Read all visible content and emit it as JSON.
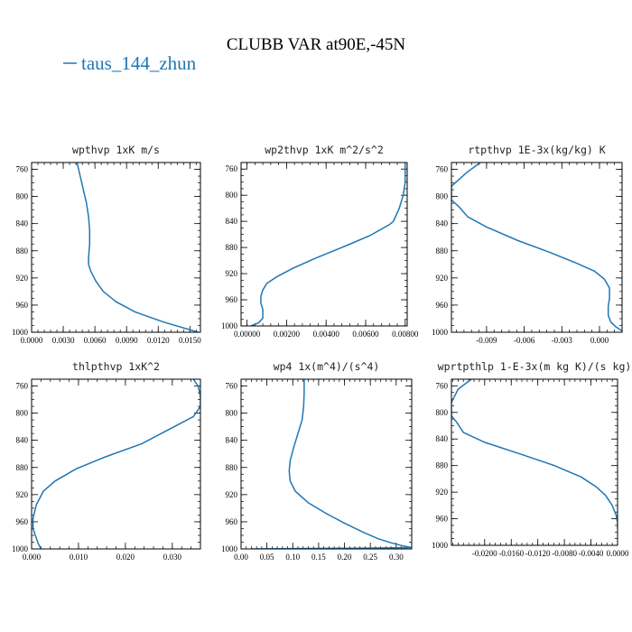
{
  "title": "CLUBB VAR at90E,-45N",
  "legend": {
    "label": "taus_144_zhun",
    "color": "#1f77b4"
  },
  "chart_data": [
    {
      "type": "line",
      "title": "wpthvp  1xK m/s",
      "xlim": [
        0.0,
        0.016
      ],
      "ylim": [
        1000,
        750
      ],
      "xticks": [
        "0.0000",
        "0.0030",
        "0.0060",
        "0.0090",
        "0.0120",
        "0.0150"
      ],
      "xtick_values": [
        0.0,
        0.003,
        0.006,
        0.009,
        0.012,
        0.015
      ],
      "yticks": [
        "760",
        "800",
        "840",
        "880",
        "920",
        "960",
        "1000"
      ],
      "ytick_values": [
        760,
        800,
        840,
        880,
        920,
        960,
        1000
      ],
      "series": [
        {
          "x": [
            0.0043,
            0.0046,
            0.0049,
            0.0052,
            0.0054,
            0.0055,
            0.0055,
            0.0054,
            0.0054,
            0.0056,
            0.0061,
            0.0068,
            0.008,
            0.0098,
            0.0125,
            0.0158
          ],
          "y": [
            750,
            770,
            790,
            810,
            830,
            850,
            870,
            890,
            900,
            910,
            925,
            940,
            955,
            970,
            985,
            1000
          ]
        }
      ]
    },
    {
      "type": "line",
      "title": "wp2thvp  1xK m^2/s^2",
      "xlim": [
        -0.0003,
        0.0081
      ],
      "ylim": [
        1000,
        750
      ],
      "xticks": [
        "0.00000",
        "0.00200",
        "0.00400",
        "0.00600",
        "0.00800"
      ],
      "xtick_values": [
        0.0,
        0.002,
        0.004,
        0.006,
        0.008
      ],
      "yticks": [
        "760",
        "800",
        "840",
        "880",
        "920",
        "960",
        "1000"
      ],
      "ytick_values": [
        760,
        800,
        840,
        880,
        920,
        960,
        1000
      ],
      "series": [
        {
          "x": [
            0.008,
            0.008,
            0.008,
            0.0079,
            0.0077,
            0.0074,
            0.0072,
            0.0062,
            0.0048,
            0.0035,
            0.0023,
            0.0015,
            0.001,
            0.0008,
            0.0007,
            0.0007,
            0.0008,
            0.0008,
            0.0006,
            0.0002
          ],
          "y": [
            750,
            760,
            780,
            800,
            820,
            840,
            845,
            862,
            880,
            896,
            912,
            925,
            935,
            945,
            955,
            965,
            975,
            988,
            995,
            1000
          ]
        }
      ]
    },
    {
      "type": "line",
      "title": "rtpthvp  1E-3x(kg/kg) K",
      "xlim": [
        -0.0118,
        0.0018
      ],
      "ylim": [
        1000,
        750
      ],
      "xticks": [
        "-0.009",
        "-0.006",
        "-0.003",
        "0.000"
      ],
      "xtick_values": [
        -0.009,
        -0.006,
        -0.003,
        0.0
      ],
      "yticks": [
        "760",
        "800",
        "840",
        "880",
        "920",
        "960",
        "1000"
      ],
      "ytick_values": [
        760,
        800,
        840,
        880,
        920,
        960,
        1000
      ],
      "series": [
        {
          "x": [
            -0.0095,
            -0.0106,
            -0.0118,
            -0.0118,
            -0.0112,
            -0.0105,
            -0.009,
            -0.0065,
            -0.004,
            -0.002,
            -0.0004,
            0.0004,
            0.0008,
            0.0008,
            0.0007,
            0.0007,
            0.0009,
            0.0013,
            0.0018
          ],
          "y": [
            750,
            765,
            785,
            805,
            815,
            830,
            845,
            865,
            882,
            897,
            910,
            922,
            935,
            950,
            962,
            975,
            985,
            992,
            998
          ]
        }
      ]
    },
    {
      "type": "line",
      "title": "thlpthvp  1xK^2",
      "xlim": [
        0.0,
        0.036
      ],
      "ylim": [
        1000,
        750
      ],
      "xticks": [
        "0.000",
        "0.010",
        "0.020",
        "0.030"
      ],
      "xtick_values": [
        0.0,
        0.01,
        0.02,
        0.03
      ],
      "yticks": [
        "760",
        "800",
        "840",
        "880",
        "920",
        "960",
        "1000"
      ],
      "ytick_values": [
        760,
        800,
        840,
        880,
        920,
        960,
        1000
      ],
      "series": [
        {
          "x": [
            0.0345,
            0.0355,
            0.036,
            0.036,
            0.0345,
            0.029,
            0.0235,
            0.0155,
            0.0095,
            0.005,
            0.0025,
            0.001,
            0.0003,
            0.0003,
            0.0008,
            0.0014,
            0.002
          ],
          "y": [
            750,
            760,
            775,
            790,
            805,
            825,
            845,
            865,
            882,
            900,
            915,
            935,
            955,
            970,
            980,
            992,
            1000
          ]
        }
      ]
    },
    {
      "type": "line",
      "title": "wp4  1x(m^4)/(s^4)",
      "xlim": [
        0.0,
        0.33
      ],
      "ylim": [
        1000,
        750
      ],
      "xticks": [
        "0.00",
        "0.05",
        "0.10",
        "0.15",
        "0.20",
        "0.25",
        "0.30"
      ],
      "xtick_values": [
        0.0,
        0.05,
        0.1,
        0.15,
        0.2,
        0.25,
        0.3
      ],
      "yticks": [
        "760",
        "800",
        "840",
        "880",
        "920",
        "960",
        "1000"
      ],
      "ytick_values": [
        760,
        800,
        840,
        880,
        920,
        960,
        1000
      ],
      "series": [
        {
          "x": [
            0.122,
            0.122,
            0.121,
            0.118,
            0.11,
            0.102,
            0.095,
            0.093,
            0.095,
            0.105,
            0.13,
            0.165,
            0.2,
            0.235,
            0.265,
            0.29,
            0.31,
            0.33,
            0.22,
            0.1,
            0.02
          ],
          "y": [
            750,
            770,
            790,
            810,
            830,
            850,
            870,
            885,
            900,
            915,
            932,
            948,
            962,
            975,
            985,
            991,
            995,
            998,
            999,
            999.5,
            1000
          ]
        }
      ]
    },
    {
      "type": "line",
      "title": "wprtpthlp   1-E-3x(m kg K)/(s kg)",
      "xlim": [
        -0.025,
        0.0
      ],
      "ylim": [
        1000,
        750
      ],
      "xticks": [
        "-0.0200",
        "-0.0160",
        "-0.0120",
        "-0.0080",
        "-0.0040",
        "0.0000"
      ],
      "xtick_values": [
        -0.02,
        -0.016,
        -0.012,
        -0.008,
        -0.004,
        0.0
      ],
      "yticks": [
        "760",
        "800",
        "840",
        "880",
        "920",
        "960",
        "1000"
      ],
      "ytick_values": [
        760,
        800,
        840,
        880,
        920,
        960,
        1000
      ],
      "series": [
        {
          "x": [
            -0.022,
            -0.024,
            -0.025,
            -0.025,
            -0.0242,
            -0.0232,
            -0.02,
            -0.0145,
            -0.0095,
            -0.0055,
            -0.0032,
            -0.0018,
            -0.0008,
            -0.0002,
            0.0,
            0.0
          ],
          "y": [
            750,
            765,
            785,
            805,
            815,
            830,
            845,
            863,
            880,
            897,
            912,
            925,
            940,
            955,
            965,
            975
          ]
        }
      ]
    }
  ]
}
